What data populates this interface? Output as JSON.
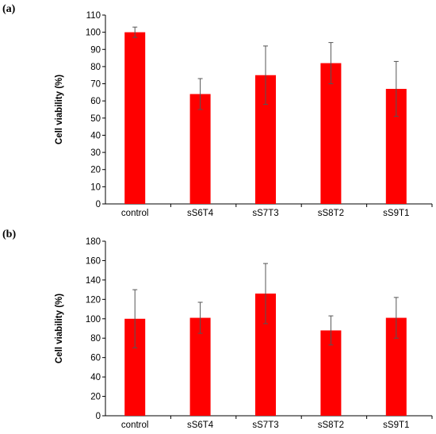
{
  "chart_data": [
    {
      "type": "bar",
      "panel_label": "(a)",
      "ylabel": "Cell viability (%)",
      "categories": [
        "control",
        "sS6T4",
        "sS7T3",
        "sS8T2",
        "sS9T1"
      ],
      "values": [
        100,
        64,
        75,
        82,
        67
      ],
      "errors": [
        3,
        9,
        17,
        12,
        16
      ],
      "ylim": [
        0,
        110
      ],
      "yticks": [
        0,
        10,
        20,
        30,
        40,
        50,
        60,
        70,
        80,
        90,
        100,
        110
      ],
      "bar_color": "#ff0000",
      "error_color": "#555555",
      "grid": false
    },
    {
      "type": "bar",
      "panel_label": "(b)",
      "ylabel": "Cell viability (%)",
      "categories": [
        "control",
        "sS6T4",
        "sS7T3",
        "sS8T2",
        "sS9T1"
      ],
      "values": [
        100,
        101,
        126,
        88,
        101
      ],
      "errors": [
        30,
        16,
        31,
        15,
        21
      ],
      "ylim": [
        0,
        180
      ],
      "yticks": [
        0,
        20,
        40,
        60,
        80,
        100,
        120,
        140,
        160,
        180
      ],
      "bar_color": "#ff0000",
      "error_color": "#555555",
      "grid": false
    }
  ]
}
